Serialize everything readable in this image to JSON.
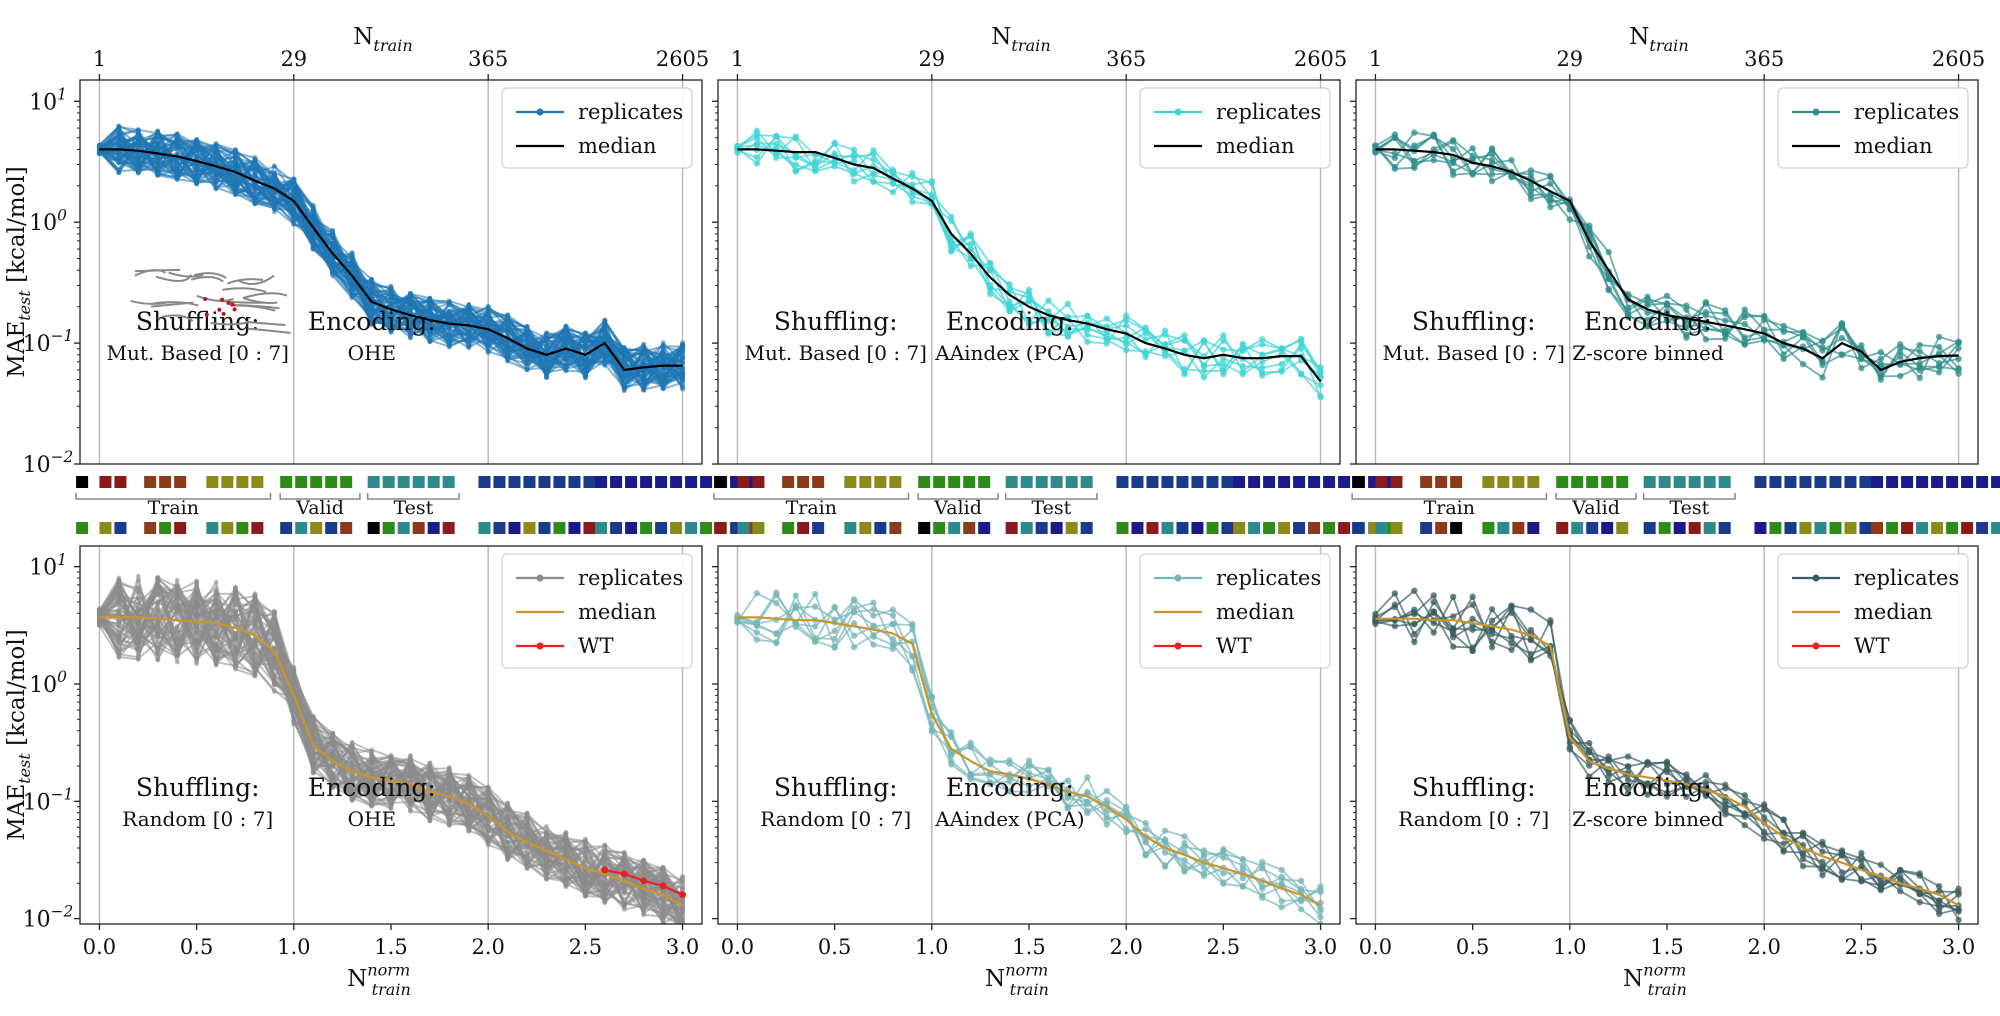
{
  "figure": {
    "top_axis_label": "N",
    "top_axis_label_sub": "train",
    "bottom_axis_label": "N",
    "bottom_axis_label_sup": "norm",
    "bottom_axis_label_sub": "train",
    "y_label_main": "MAE",
    "y_label_sub": "test",
    "y_label_unit": " [kcal/mol]",
    "split_labels": [
      "Train",
      "Valid",
      "Test"
    ],
    "colors": {
      "blue": "#1f77b4",
      "cyan": "#3fd4d4",
      "teal": "#2f8f8c",
      "gray": "#8c8c8c",
      "lightteal": "#77b6b8",
      "darkslate": "#3c5e60",
      "orange": "#c8962a",
      "red": "#e8231f",
      "black": "#000000"
    }
  },
  "chart_data": [
    {
      "type": "line",
      "panel": "top-left",
      "ylim": [
        0.01,
        15
      ],
      "yscale": "log",
      "top_ticks": [
        "1",
        "29",
        "365",
        "2605"
      ],
      "top_ticks_pos": [
        0,
        1,
        2,
        3
      ],
      "y_ticks": [
        "10",
        "10",
        "10",
        "10"
      ],
      "y_ticks_exp": [
        "1",
        "0",
        "−1",
        "−2"
      ],
      "legend": [
        "replicates",
        "median"
      ],
      "shuffling_title": "Shuffling:",
      "shuffling_value": "Mut. Based [0 : 7]",
      "encoding_title": "Encoding:",
      "encoding_value": "OHE",
      "replicate_color": "#1f77b4",
      "median_color": "#000000",
      "median_x": [
        0,
        0.1,
        0.2,
        0.3,
        0.4,
        0.5,
        0.6,
        0.7,
        0.8,
        0.9,
        1.0,
        1.1,
        1.2,
        1.3,
        1.4,
        1.5,
        1.6,
        1.7,
        1.8,
        1.9,
        2.0,
        2.1,
        2.2,
        2.3,
        2.4,
        2.5,
        2.6,
        2.7,
        2.8,
        2.9,
        3.0
      ],
      "median": [
        4.0,
        4.0,
        3.9,
        3.7,
        3.5,
        3.2,
        2.9,
        2.6,
        2.2,
        1.9,
        1.5,
        0.9,
        0.55,
        0.36,
        0.22,
        0.19,
        0.17,
        0.155,
        0.145,
        0.14,
        0.13,
        0.11,
        0.09,
        0.08,
        0.09,
        0.08,
        0.1,
        0.06,
        0.063,
        0.065,
        0.065
      ],
      "replicate_count": 60,
      "spread": 0.35
    },
    {
      "type": "line",
      "panel": "top-middle",
      "ylim": [
        0.01,
        15
      ],
      "yscale": "log",
      "top_ticks": [
        "1",
        "29",
        "365",
        "2605"
      ],
      "top_ticks_pos": [
        0,
        1,
        2,
        3
      ],
      "y_ticks": [
        "10",
        "10",
        "10",
        "10"
      ],
      "y_ticks_exp": [
        "1",
        "0",
        "−1",
        "−2"
      ],
      "legend": [
        "replicates",
        "median"
      ],
      "shuffling_title": "Shuffling:",
      "shuffling_value": "Mut. Based [0 : 7]",
      "encoding_title": "Encoding:",
      "encoding_value": "AAindex (PCA)",
      "replicate_color": "#3fd4d4",
      "median_color": "#000000",
      "median_x": [
        0,
        0.1,
        0.2,
        0.3,
        0.4,
        0.5,
        0.6,
        0.7,
        0.8,
        0.9,
        1.0,
        1.1,
        1.2,
        1.3,
        1.4,
        1.5,
        1.6,
        1.7,
        1.8,
        1.9,
        2.0,
        2.1,
        2.2,
        2.3,
        2.4,
        2.5,
        2.6,
        2.7,
        2.8,
        2.9,
        3.0
      ],
      "median": [
        4.0,
        4.0,
        3.9,
        3.8,
        3.8,
        3.4,
        3.0,
        2.8,
        2.3,
        1.9,
        1.5,
        0.8,
        0.55,
        0.35,
        0.25,
        0.2,
        0.17,
        0.155,
        0.145,
        0.13,
        0.12,
        0.1,
        0.09,
        0.08,
        0.075,
        0.08,
        0.075,
        0.075,
        0.078,
        0.078,
        0.048
      ],
      "replicate_count": 8,
      "spread": 0.3
    },
    {
      "type": "line",
      "panel": "top-right",
      "ylim": [
        0.01,
        15
      ],
      "yscale": "log",
      "top_ticks": [
        "1",
        "29",
        "365",
        "2605"
      ],
      "top_ticks_pos": [
        0,
        1,
        2,
        3
      ],
      "y_ticks": [
        "10",
        "10",
        "10",
        "10"
      ],
      "y_ticks_exp": [
        "1",
        "0",
        "−1",
        "−2"
      ],
      "legend": [
        "replicates",
        "median"
      ],
      "shuffling_title": "Shuffling:",
      "shuffling_value": "Mut. Based [0 : 7]",
      "encoding_title": "Encoding:",
      "encoding_value": "Z-score binned",
      "replicate_color": "#2f8f8c",
      "median_color": "#000000",
      "median_x": [
        0,
        0.1,
        0.2,
        0.3,
        0.4,
        0.5,
        0.6,
        0.7,
        0.8,
        0.9,
        1.0,
        1.1,
        1.2,
        1.3,
        1.4,
        1.5,
        1.6,
        1.7,
        1.8,
        1.9,
        2.0,
        2.1,
        2.2,
        2.3,
        2.4,
        2.5,
        2.6,
        2.7,
        2.8,
        2.9,
        3.0
      ],
      "median": [
        4.0,
        4.0,
        3.9,
        3.8,
        3.6,
        3.1,
        2.9,
        2.6,
        2.2,
        1.8,
        1.5,
        0.7,
        0.4,
        0.23,
        0.19,
        0.17,
        0.16,
        0.15,
        0.14,
        0.13,
        0.12,
        0.1,
        0.09,
        0.075,
        0.1,
        0.085,
        0.06,
        0.07,
        0.075,
        0.078,
        0.079
      ],
      "replicate_count": 8,
      "spread": 0.3
    },
    {
      "type": "line",
      "panel": "bottom-left",
      "ylim": [
        0.009,
        15
      ],
      "yscale": "log",
      "x_ticks": [
        "0.0",
        "0.5",
        "1.0",
        "1.5",
        "2.0",
        "2.5",
        "3.0"
      ],
      "x_ticks_pos": [
        0,
        0.5,
        1,
        1.5,
        2,
        2.5,
        3
      ],
      "y_ticks": [
        "10",
        "10",
        "10"
      ],
      "y_ticks_exp": [
        "1",
        "0",
        "−1"
      ],
      "y_ticks_extra": [
        "10"
      ],
      "y_ticks_extra_exp": [
        "−2"
      ],
      "legend": [
        "replicates",
        "median",
        "WT"
      ],
      "shuffling_title": "Shuffling:",
      "shuffling_value": "Random [0 : 7]",
      "encoding_title": "Encoding:",
      "encoding_value": "OHE",
      "replicate_color": "#8c8c8c",
      "median_color": "#c8962a",
      "median_x": [
        0,
        0.1,
        0.2,
        0.3,
        0.4,
        0.5,
        0.6,
        0.7,
        0.8,
        0.9,
        1.0,
        1.1,
        1.2,
        1.3,
        1.4,
        1.5,
        1.6,
        1.7,
        1.8,
        1.9,
        2.0,
        2.1,
        2.2,
        2.3,
        2.4,
        2.5,
        2.6,
        2.7,
        2.8,
        2.9,
        3.0
      ],
      "median": [
        3.7,
        3.7,
        3.7,
        3.6,
        3.5,
        3.4,
        3.3,
        3.0,
        2.6,
        1.9,
        0.8,
        0.3,
        0.22,
        0.18,
        0.16,
        0.15,
        0.14,
        0.12,
        0.11,
        0.095,
        0.075,
        0.055,
        0.045,
        0.038,
        0.032,
        0.027,
        0.024,
        0.021,
        0.018,
        0.016,
        0.013
      ],
      "wt_x": [
        2.6,
        2.7,
        2.8,
        2.9,
        3.0
      ],
      "wt": [
        0.026,
        0.024,
        0.021,
        0.019,
        0.016
      ],
      "replicate_count": 60,
      "spread": 0.45
    },
    {
      "type": "line",
      "panel": "bottom-middle",
      "ylim": [
        0.009,
        15
      ],
      "yscale": "log",
      "x_ticks": [
        "0.0",
        "0.5",
        "1.0",
        "1.5",
        "2.0",
        "2.5",
        "3.0"
      ],
      "x_ticks_pos": [
        0,
        0.5,
        1,
        1.5,
        2,
        2.5,
        3
      ],
      "y_ticks": [
        "10",
        "10",
        "10"
      ],
      "y_ticks_exp": [
        "1",
        "0",
        "−1"
      ],
      "y_ticks_extra": [
        "10"
      ],
      "y_ticks_extra_exp": [
        "−2"
      ],
      "legend": [
        "replicates",
        "median",
        "WT"
      ],
      "shuffling_title": "Shuffling:",
      "shuffling_value": "Random [0 : 7]",
      "encoding_title": "Encoding:",
      "encoding_value": "AAindex (PCA)",
      "replicate_color": "#77b6b8",
      "median_color": "#c8962a",
      "median_x": [
        0,
        0.1,
        0.2,
        0.3,
        0.4,
        0.5,
        0.6,
        0.7,
        0.8,
        0.9,
        1.0,
        1.1,
        1.2,
        1.3,
        1.4,
        1.5,
        1.6,
        1.7,
        1.8,
        1.9,
        2.0,
        2.1,
        2.2,
        2.3,
        2.4,
        2.5,
        2.6,
        2.7,
        2.8,
        2.9,
        3.0
      ],
      "median": [
        3.7,
        3.7,
        3.6,
        3.5,
        3.5,
        3.3,
        3.1,
        2.9,
        2.7,
        2.2,
        0.55,
        0.28,
        0.22,
        0.18,
        0.17,
        0.155,
        0.14,
        0.12,
        0.11,
        0.09,
        0.07,
        0.05,
        0.04,
        0.035,
        0.03,
        0.027,
        0.024,
        0.021,
        0.018,
        0.016,
        0.013
      ],
      "replicate_count": 8,
      "spread": 0.3
    },
    {
      "type": "line",
      "panel": "bottom-right",
      "ylim": [
        0.009,
        15
      ],
      "yscale": "log",
      "x_ticks": [
        "0.0",
        "0.5",
        "1.0",
        "1.5",
        "2.0",
        "2.5",
        "3.0"
      ],
      "x_ticks_pos": [
        0,
        0.5,
        1,
        1.5,
        2,
        2.5,
        3
      ],
      "y_ticks": [
        "10",
        "10",
        "10"
      ],
      "y_ticks_exp": [
        "1",
        "0",
        "−1"
      ],
      "y_ticks_extra": [
        "10"
      ],
      "y_ticks_extra_exp": [
        "−2"
      ],
      "legend": [
        "replicates",
        "median",
        "WT"
      ],
      "shuffling_title": "Shuffling:",
      "shuffling_value": "Random [0 : 7]",
      "encoding_title": "Encoding:",
      "encoding_value": "Z-score binned",
      "replicate_color": "#3c5e60",
      "median_color": "#c8962a",
      "median_x": [
        0,
        0.1,
        0.2,
        0.3,
        0.4,
        0.5,
        0.6,
        0.7,
        0.8,
        0.9,
        1.0,
        1.1,
        1.2,
        1.3,
        1.4,
        1.5,
        1.6,
        1.7,
        1.8,
        1.9,
        2.0,
        2.1,
        2.2,
        2.3,
        2.4,
        2.5,
        2.6,
        2.7,
        2.8,
        2.9,
        3.0
      ],
      "median": [
        3.6,
        3.6,
        3.6,
        3.5,
        3.5,
        3.3,
        3.1,
        2.9,
        2.6,
        2.1,
        0.35,
        0.22,
        0.19,
        0.17,
        0.16,
        0.15,
        0.14,
        0.125,
        0.11,
        0.09,
        0.065,
        0.05,
        0.04,
        0.034,
        0.03,
        0.026,
        0.023,
        0.02,
        0.018,
        0.016,
        0.013
      ],
      "replicate_count": 8,
      "spread": 0.3
    }
  ],
  "strips": {
    "top_colors": [
      "#000000",
      "#8b1a1a",
      "#8b3a1a",
      "#8b8b1a",
      "#2e8b1a",
      "#2e8b8b",
      "#1a3a8b",
      "#1a1a8b"
    ],
    "bottom_sequence": [
      "#2e8b1a",
      "#8b8b1a",
      "#1a3a8b",
      "#8b3a1a",
      "#2e8b1a",
      "#8b1a1a",
      "#2e8b8b",
      "#8b8b1a",
      "#2e8b1a",
      "#8b1a1a",
      "#1a3a8b",
      "#2e8b8b",
      "#8b8b1a",
      "#1a3a8b",
      "#8b3a1a",
      "#000000",
      "#2e8b1a",
      "#2e8b8b",
      "#8b3a1a",
      "#1a1a8b",
      "#8b1a1a",
      "#2e8b8b",
      "#1a3a8b",
      "#1a1a8b",
      "#8b8b1a",
      "#1a3a8b",
      "#2e8b1a",
      "#1a1a8b",
      "#8b1a1a",
      "#2e8b8b",
      "#1a3a8b",
      "#1a1a8b",
      "#2e8b1a",
      "#1a3a8b",
      "#8b8b1a",
      "#2e8b8b"
    ]
  }
}
